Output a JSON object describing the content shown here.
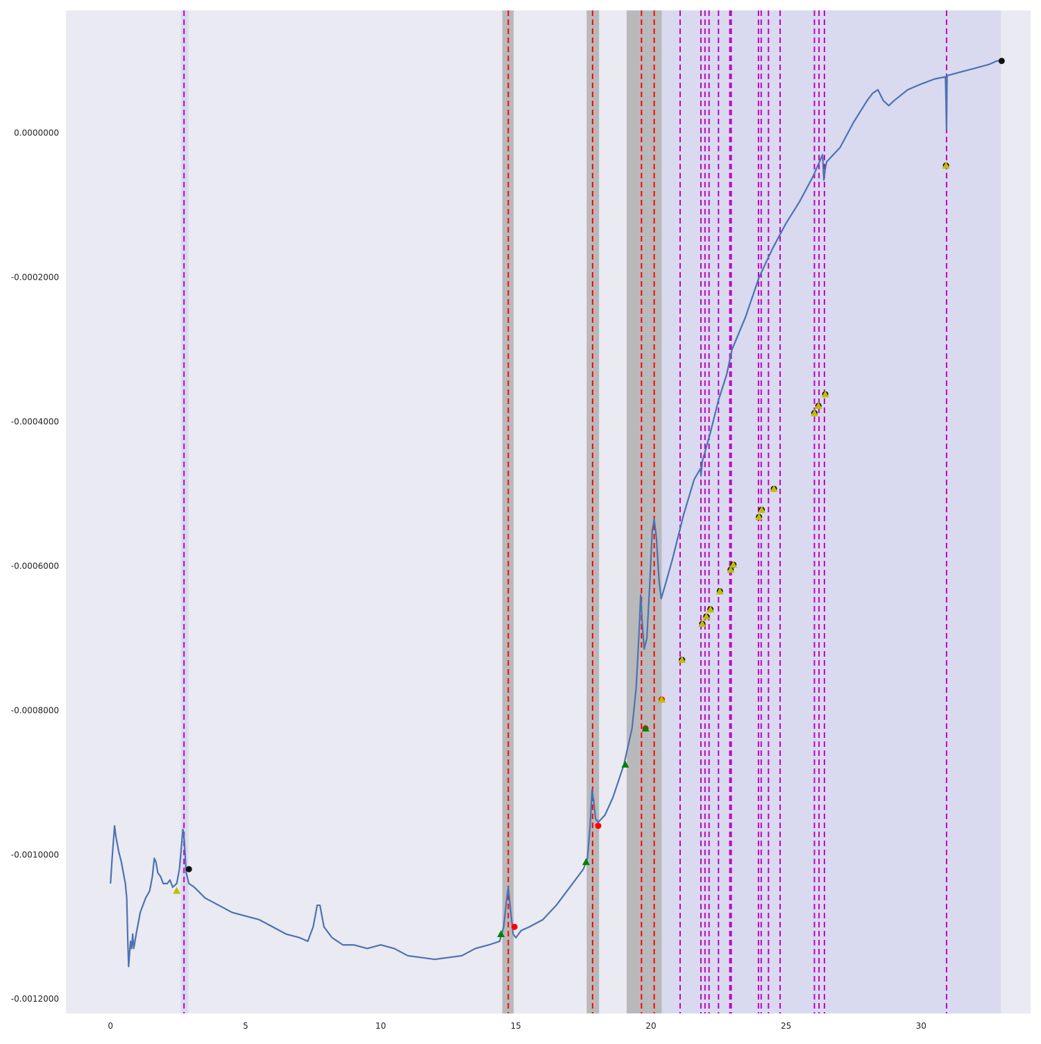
{
  "chart_data": {
    "type": "line",
    "title": "",
    "xlabel": "",
    "ylabel": "",
    "xlim": [
      -1.65,
      34.05
    ],
    "ylim": [
      -0.00122,
      0.00017
    ],
    "x_ticks": [
      0,
      5,
      10,
      15,
      20,
      25,
      30
    ],
    "x_tick_labels": [
      "0",
      "5",
      "10",
      "15",
      "20",
      "25",
      "30"
    ],
    "y_ticks": [
      0.0,
      -0.0002,
      -0.0004,
      -0.0006,
      -0.0008,
      -0.001,
      -0.0012
    ],
    "y_tick_labels": [
      "0.0000000",
      "-0.0002000",
      "-0.0004000",
      "-0.0006000",
      "-0.0008000",
      "-0.0010000",
      "-0.0012000"
    ],
    "grid": false,
    "legend": "none",
    "colors": {
      "plot_background": "#eaeaf2",
      "line": "#4c72b0",
      "light_band": "#d9d9f0",
      "gray_band": "#a8a8a8",
      "red_dashed": "#ff0000",
      "magenta_dashed": "#bf00bf",
      "green_marker": "#008000",
      "red_marker": "#ff0000",
      "yellow_marker": "#bfbf00",
      "black_marker": "#111111"
    },
    "series": [
      {
        "values": [
          [
            0.0,
            -0.00104
          ],
          [
            0.05,
            -0.00101
          ],
          [
            0.1,
            -0.000985
          ],
          [
            0.15,
            -0.00096
          ],
          [
            0.2,
            -0.000975
          ],
          [
            0.3,
            -0.000995
          ],
          [
            0.4,
            -0.00101
          ],
          [
            0.5,
            -0.00103
          ],
          [
            0.55,
            -0.00104
          ],
          [
            0.6,
            -0.00106
          ],
          [
            0.64,
            -0.00112
          ],
          [
            0.67,
            -0.001155
          ],
          [
            0.7,
            -0.00114
          ],
          [
            0.74,
            -0.00112
          ],
          [
            0.78,
            -0.00113
          ],
          [
            0.82,
            -0.00111
          ],
          [
            0.86,
            -0.00113
          ],
          [
            0.95,
            -0.00111
          ],
          [
            1.1,
            -0.00108
          ],
          [
            1.3,
            -0.00106
          ],
          [
            1.45,
            -0.00105
          ],
          [
            1.55,
            -0.00103
          ],
          [
            1.62,
            -0.001005
          ],
          [
            1.68,
            -0.00101
          ],
          [
            1.75,
            -0.001025
          ],
          [
            1.85,
            -0.00103
          ],
          [
            1.95,
            -0.00104
          ],
          [
            2.1,
            -0.00104
          ],
          [
            2.2,
            -0.001035
          ],
          [
            2.3,
            -0.001045
          ],
          [
            2.45,
            -0.00104
          ],
          [
            2.55,
            -0.00102
          ],
          [
            2.62,
            -0.00099
          ],
          [
            2.68,
            -0.000965
          ],
          [
            2.73,
            -0.00098
          ],
          [
            2.8,
            -0.001025
          ],
          [
            2.9,
            -0.00104
          ],
          [
            3.1,
            -0.001045
          ],
          [
            3.5,
            -0.00106
          ],
          [
            4.0,
            -0.00107
          ],
          [
            4.5,
            -0.00108
          ],
          [
            5.0,
            -0.001085
          ],
          [
            5.5,
            -0.00109
          ],
          [
            6.0,
            -0.0011
          ],
          [
            6.5,
            -0.00111
          ],
          [
            7.0,
            -0.001115
          ],
          [
            7.3,
            -0.00112
          ],
          [
            7.5,
            -0.0011
          ],
          [
            7.65,
            -0.00107
          ],
          [
            7.75,
            -0.00107
          ],
          [
            7.9,
            -0.0011
          ],
          [
            8.2,
            -0.001115
          ],
          [
            8.6,
            -0.001125
          ],
          [
            9.0,
            -0.001125
          ],
          [
            9.5,
            -0.00113
          ],
          [
            10.0,
            -0.001125
          ],
          [
            10.5,
            -0.00113
          ],
          [
            11.0,
            -0.00114
          ],
          [
            12.0,
            -0.001145
          ],
          [
            13.0,
            -0.00114
          ],
          [
            13.5,
            -0.00113
          ],
          [
            14.0,
            -0.001125
          ],
          [
            14.4,
            -0.00112
          ],
          [
            14.55,
            -0.0011
          ],
          [
            14.65,
            -0.001065
          ],
          [
            14.72,
            -0.001045
          ],
          [
            14.8,
            -0.001075
          ],
          [
            14.9,
            -0.00111
          ],
          [
            15.0,
            -0.001115
          ],
          [
            15.2,
            -0.001105
          ],
          [
            15.5,
            -0.0011
          ],
          [
            16.0,
            -0.00109
          ],
          [
            16.5,
            -0.00107
          ],
          [
            17.0,
            -0.001045
          ],
          [
            17.5,
            -0.00102
          ],
          [
            17.65,
            -0.001005
          ],
          [
            17.75,
            -0.00096
          ],
          [
            17.82,
            -0.00091
          ],
          [
            17.88,
            -0.000925
          ],
          [
            17.95,
            -0.00095
          ],
          [
            18.05,
            -0.000955
          ],
          [
            18.3,
            -0.000945
          ],
          [
            18.6,
            -0.00092
          ],
          [
            19.0,
            -0.000875
          ],
          [
            19.3,
            -0.000825
          ],
          [
            19.45,
            -0.00077
          ],
          [
            19.55,
            -0.0007
          ],
          [
            19.62,
            -0.00064
          ],
          [
            19.68,
            -0.00068
          ],
          [
            19.75,
            -0.000715
          ],
          [
            19.85,
            -0.0007
          ],
          [
            19.95,
            -0.00063
          ],
          [
            20.05,
            -0.00055
          ],
          [
            20.12,
            -0.000535
          ],
          [
            20.2,
            -0.00056
          ],
          [
            20.3,
            -0.00062
          ],
          [
            20.38,
            -0.000645
          ],
          [
            20.5,
            -0.00063
          ],
          [
            20.8,
            -0.00059
          ],
          [
            21.2,
            -0.00053
          ],
          [
            21.6,
            -0.00048
          ],
          [
            21.83,
            -0.000465
          ],
          [
            21.85,
            -0.000475
          ],
          [
            21.9,
            -0.000455
          ],
          [
            22.2,
            -0.000415
          ],
          [
            22.5,
            -0.00037
          ],
          [
            22.8,
            -0.000335
          ],
          [
            23.0,
            -0.0003
          ],
          [
            23.5,
            -0.000255
          ],
          [
            24.0,
            -0.0002
          ],
          [
            24.5,
            -0.00016
          ],
          [
            25.0,
            -0.000125
          ],
          [
            25.5,
            -9.5e-05
          ],
          [
            26.0,
            -6e-05
          ],
          [
            26.35,
            -3e-05
          ],
          [
            26.4,
            -6.5e-05
          ],
          [
            26.45,
            -5e-05
          ],
          [
            26.5,
            -4e-05
          ],
          [
            27.0,
            -2e-05
          ],
          [
            27.5,
            1.5e-05
          ],
          [
            28.0,
            4.5e-05
          ],
          [
            28.2,
            5.5e-05
          ],
          [
            28.4,
            6e-05
          ],
          [
            28.6,
            4.5e-05
          ],
          [
            28.8,
            3.8e-05
          ],
          [
            29.0,
            4.5e-05
          ],
          [
            29.5,
            6e-05
          ],
          [
            30.0,
            6.8e-05
          ],
          [
            30.5,
            7.5e-05
          ],
          [
            30.9,
            7.8e-05
          ],
          [
            30.94,
            5e-06
          ],
          [
            30.96,
            8e-05
          ],
          [
            31.0,
            8e-05
          ],
          [
            31.5,
            8.5e-05
          ],
          [
            32.0,
            9e-05
          ],
          [
            32.5,
            9.5e-05
          ],
          [
            32.8,
            0.0001
          ],
          [
            32.95,
            0.0001
          ]
        ]
      }
    ],
    "shaded_regions": [
      {
        "kind": "light",
        "x": [
          2.6,
          2.88
        ]
      },
      {
        "kind": "gray",
        "x": [
          14.5,
          14.92
        ]
      },
      {
        "kind": "gray",
        "x": [
          17.62,
          18.08
        ]
      },
      {
        "kind": "gray",
        "x": [
          19.1,
          19.92
        ]
      },
      {
        "kind": "gray",
        "x": [
          19.92,
          20.4
        ]
      },
      {
        "kind": "light",
        "x": [
          20.4,
          32.95
        ]
      }
    ],
    "red_dashed_lines": [
      14.72,
      17.84,
      19.65,
      20.12
    ],
    "magenta_dashed_lines": [
      2.72,
      21.08,
      21.85,
      22.0,
      22.15,
      22.5,
      22.92,
      22.97,
      23.98,
      24.08,
      24.35,
      24.78,
      26.05,
      26.22,
      26.42,
      30.94
    ],
    "markers": [
      {
        "type": "triangle",
        "color": "yellow",
        "x": 2.45,
        "y": -0.00105
      },
      {
        "type": "circle",
        "color": "black",
        "x": 2.9,
        "y": -0.00102
      },
      {
        "type": "triangle",
        "color": "green",
        "x": 14.45,
        "y": -0.00111
      },
      {
        "type": "circle",
        "color": "red",
        "x": 14.95,
        "y": -0.0011
      },
      {
        "type": "triangle",
        "color": "green",
        "x": 17.6,
        "y": -0.00101
      },
      {
        "type": "circle",
        "color": "red",
        "x": 18.05,
        "y": -0.00096
      },
      {
        "type": "triangle",
        "color": "green",
        "x": 19.05,
        "y": -0.000875
      },
      {
        "type": "circle",
        "color": "red",
        "x": 19.8,
        "y": -0.000825
      },
      {
        "type": "triangle",
        "color": "green",
        "x": 19.8,
        "y": -0.000825
      },
      {
        "type": "circle",
        "color": "red",
        "x": 20.4,
        "y": -0.000785
      },
      {
        "type": "triangle",
        "color": "yellow",
        "x": 20.4,
        "y": -0.000785
      },
      {
        "type": "circle",
        "color": "black",
        "x": 21.15,
        "y": -0.00073
      },
      {
        "type": "triangle",
        "color": "yellow",
        "x": 21.15,
        "y": -0.00073
      },
      {
        "type": "circle",
        "color": "black",
        "x": 21.9,
        "y": -0.00068
      },
      {
        "type": "triangle",
        "color": "yellow",
        "x": 21.9,
        "y": -0.00068
      },
      {
        "type": "circle",
        "color": "black",
        "x": 22.05,
        "y": -0.00067
      },
      {
        "type": "triangle",
        "color": "yellow",
        "x": 22.05,
        "y": -0.00067
      },
      {
        "type": "circle",
        "color": "black",
        "x": 22.2,
        "y": -0.00066
      },
      {
        "type": "triangle",
        "color": "yellow",
        "x": 22.2,
        "y": -0.00066
      },
      {
        "type": "circle",
        "color": "black",
        "x": 22.55,
        "y": -0.000635
      },
      {
        "type": "triangle",
        "color": "yellow",
        "x": 22.55,
        "y": -0.000635
      },
      {
        "type": "circle",
        "color": "black",
        "x": 22.95,
        "y": -0.000605
      },
      {
        "type": "triangle",
        "color": "yellow",
        "x": 22.95,
        "y": -0.000605
      },
      {
        "type": "circle",
        "color": "black",
        "x": 23.05,
        "y": -0.000598
      },
      {
        "type": "triangle",
        "color": "yellow",
        "x": 23.05,
        "y": -0.000598
      },
      {
        "type": "circle",
        "color": "black",
        "x": 24.0,
        "y": -0.000532
      },
      {
        "type": "triangle",
        "color": "yellow",
        "x": 24.0,
        "y": -0.000532
      },
      {
        "type": "circle",
        "color": "black",
        "x": 24.1,
        "y": -0.000522
      },
      {
        "type": "triangle",
        "color": "yellow",
        "x": 24.1,
        "y": -0.000522
      },
      {
        "type": "circle",
        "color": "black",
        "x": 24.55,
        "y": -0.000493
      },
      {
        "type": "triangle",
        "color": "yellow",
        "x": 24.55,
        "y": -0.000493
      },
      {
        "type": "circle",
        "color": "black",
        "x": 26.05,
        "y": -0.000388
      },
      {
        "type": "triangle",
        "color": "yellow",
        "x": 26.05,
        "y": -0.000388
      },
      {
        "type": "circle",
        "color": "black",
        "x": 26.2,
        "y": -0.000378
      },
      {
        "type": "triangle",
        "color": "yellow",
        "x": 26.2,
        "y": -0.000378
      },
      {
        "type": "circle",
        "color": "black",
        "x": 26.45,
        "y": -0.000362
      },
      {
        "type": "triangle",
        "color": "yellow",
        "x": 26.45,
        "y": -0.000362
      },
      {
        "type": "circle",
        "color": "black",
        "x": 30.92,
        "y": -4.5e-05
      },
      {
        "type": "triangle",
        "color": "yellow",
        "x": 30.92,
        "y": -4.5e-05
      },
      {
        "type": "circle",
        "color": "black",
        "x": 32.98,
        "y": 0.0001
      }
    ]
  }
}
